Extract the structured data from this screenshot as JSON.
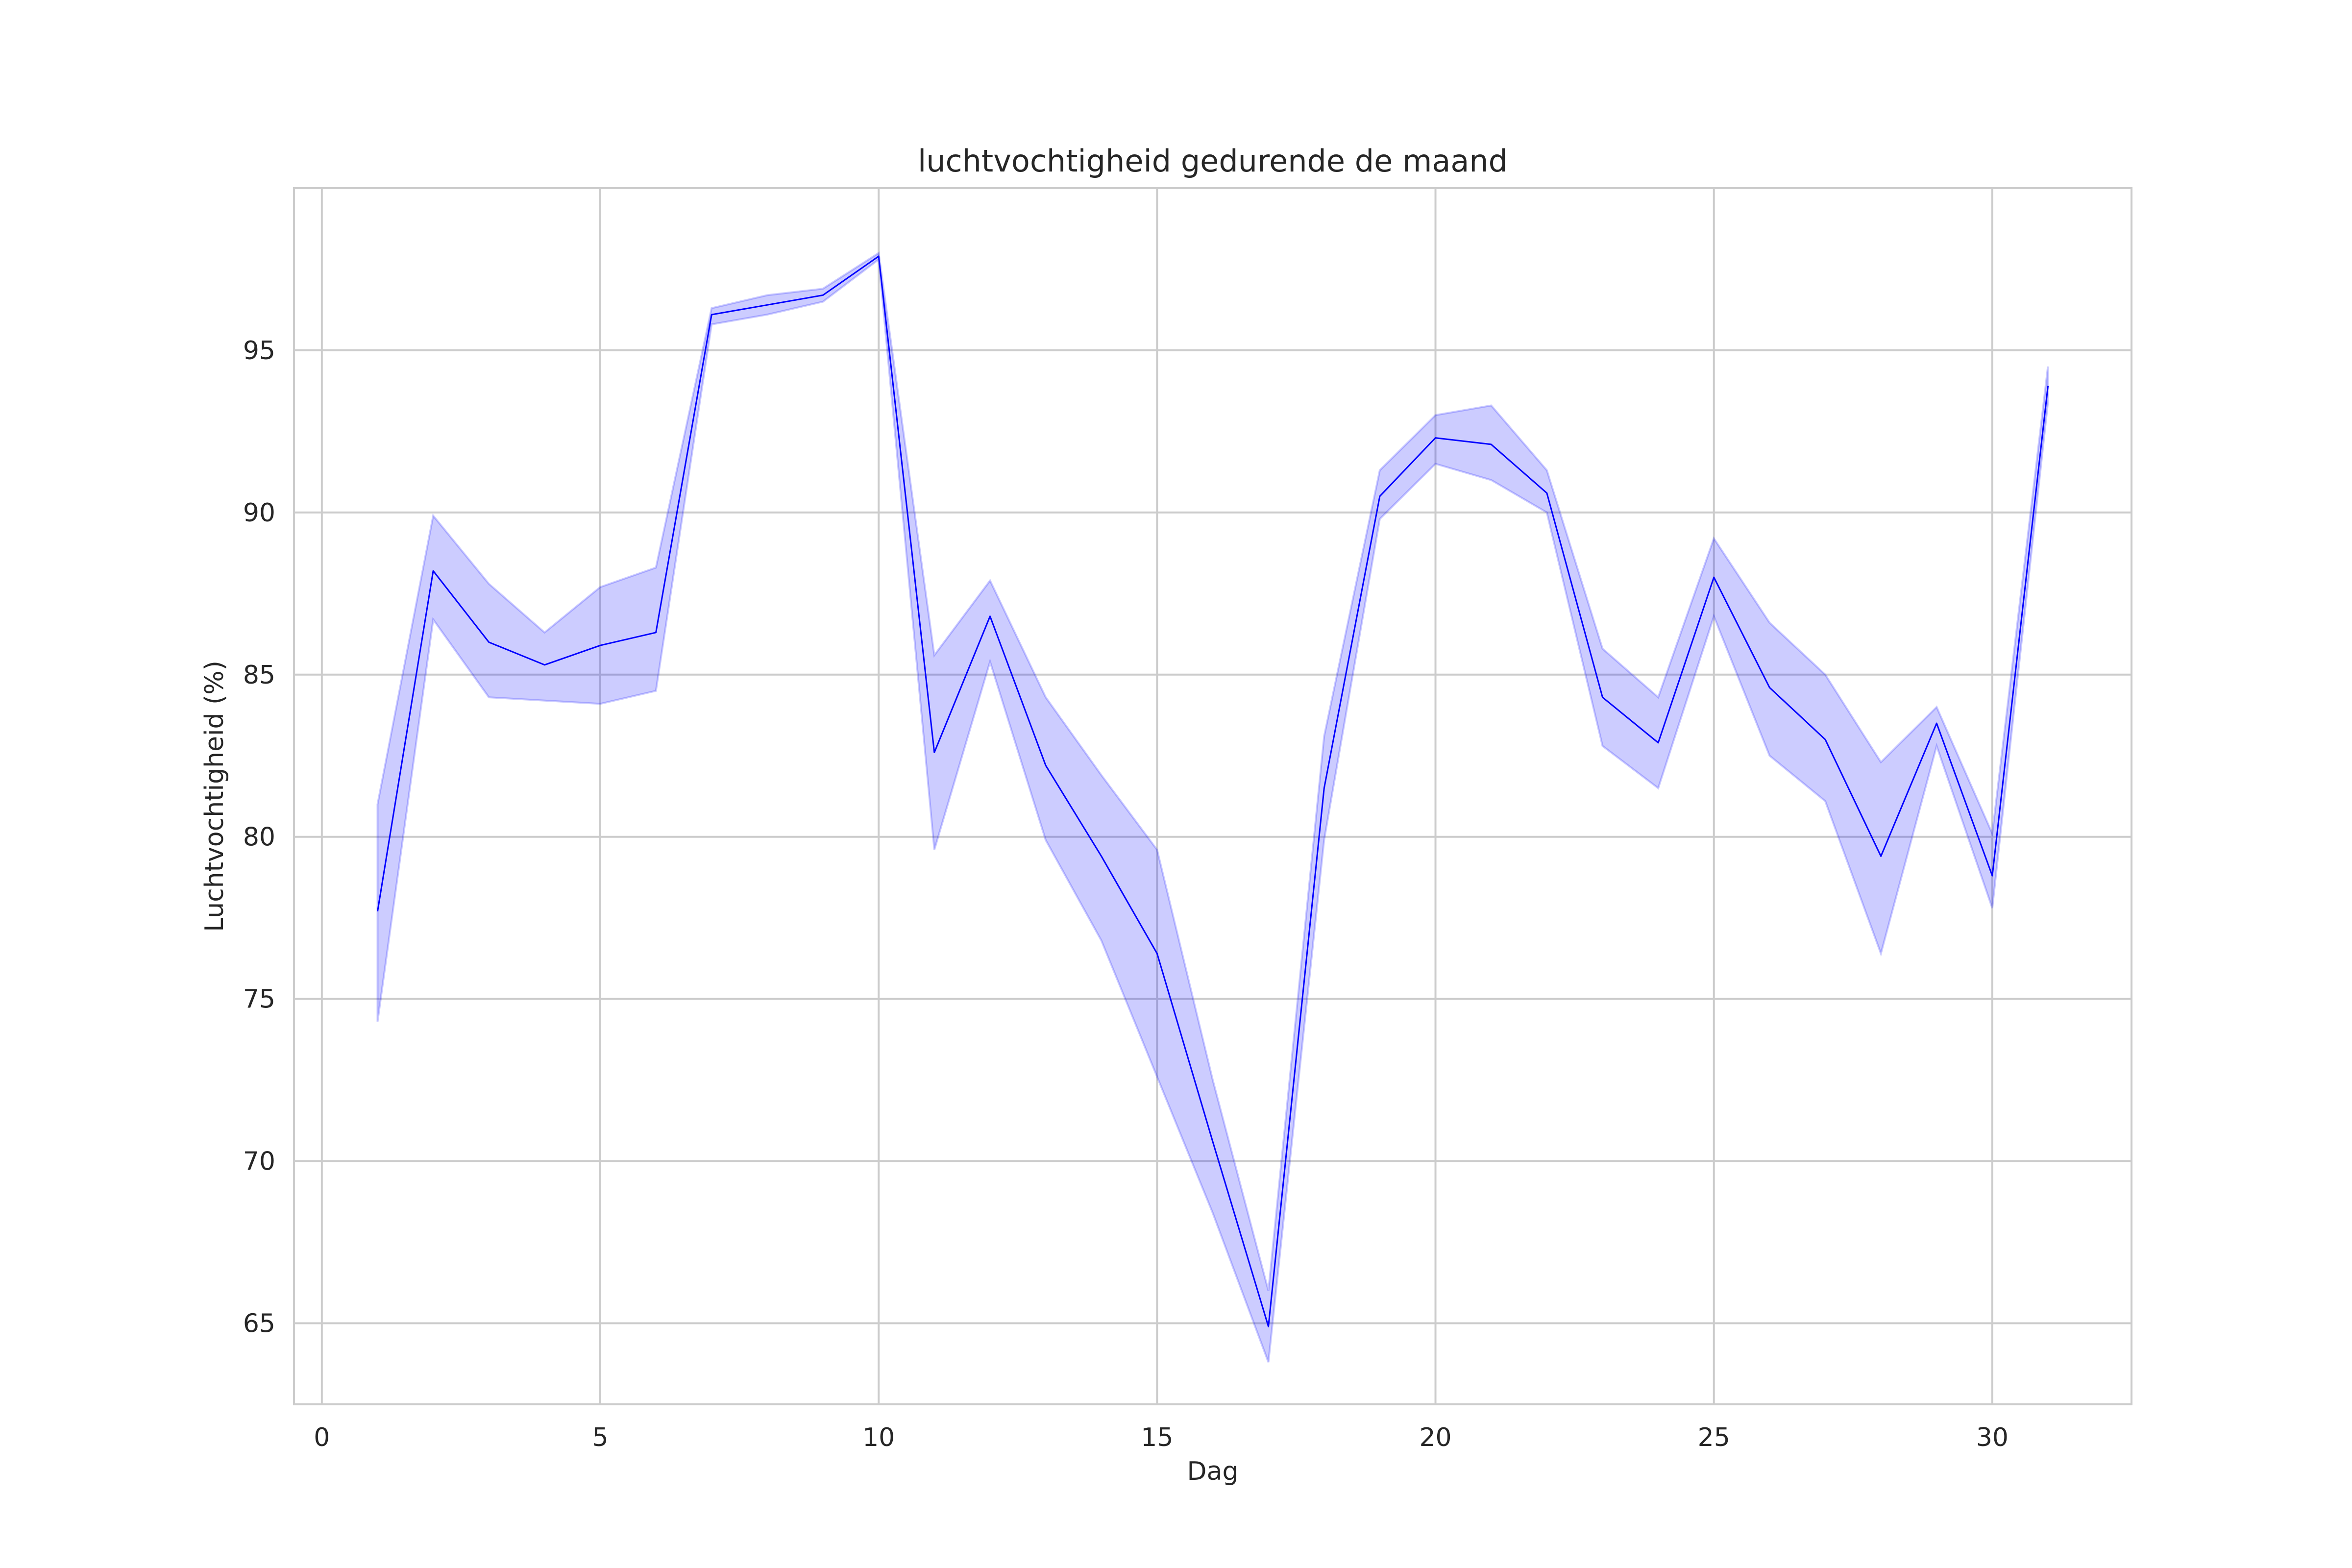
{
  "chart_data": {
    "type": "line",
    "title": "luchtvochtigheid gedurende de maand",
    "xlabel": "Dag",
    "ylabel": "Luchtvochtigheid (%)",
    "xlim": [
      -0.5,
      32.5
    ],
    "ylim": [
      62.5,
      100
    ],
    "xticks": [
      0,
      5,
      10,
      15,
      20,
      25,
      30
    ],
    "yticks": [
      65,
      70,
      75,
      80,
      85,
      90,
      95
    ],
    "grid": true,
    "legend": "none",
    "colors": {
      "line": "#0000ff",
      "band": "#0000ff",
      "grid": "#cccccc",
      "text": "#262626"
    },
    "series": [
      {
        "x": [
          1,
          2,
          3,
          4,
          5,
          6,
          7,
          8,
          9,
          10,
          11,
          12,
          13,
          14,
          15,
          16,
          17,
          18,
          19,
          20,
          21,
          22,
          23,
          24,
          25,
          26,
          27,
          28,
          29,
          30,
          31
        ],
        "values": [
          77.7,
          88.2,
          86.0,
          85.3,
          85.9,
          86.3,
          96.1,
          96.4,
          96.7,
          97.9,
          82.6,
          86.8,
          82.2,
          79.4,
          76.4,
          70.6,
          64.9,
          81.5,
          90.5,
          92.3,
          92.1,
          90.6,
          84.3,
          82.9,
          88.0,
          84.6,
          83.0,
          79.4,
          83.5,
          78.8,
          93.9
        ],
        "lower": [
          74.3,
          86.7,
          84.3,
          84.2,
          84.1,
          84.5,
          95.8,
          96.1,
          96.5,
          97.8,
          79.6,
          85.4,
          79.9,
          76.8,
          72.6,
          68.4,
          63.8,
          79.9,
          89.8,
          91.5,
          91.0,
          90.0,
          82.8,
          81.5,
          86.8,
          82.5,
          81.1,
          76.4,
          82.8,
          77.8,
          93.4
        ],
        "upper": [
          81.0,
          89.9,
          87.8,
          86.3,
          87.7,
          88.3,
          96.3,
          96.7,
          96.9,
          98.0,
          85.6,
          87.9,
          84.3,
          81.9,
          79.6,
          72.5,
          66.0,
          83.1,
          91.3,
          93.0,
          93.3,
          91.3,
          85.8,
          84.3,
          89.2,
          86.6,
          85.0,
          82.3,
          84.0,
          80.1,
          94.5
        ]
      }
    ]
  }
}
